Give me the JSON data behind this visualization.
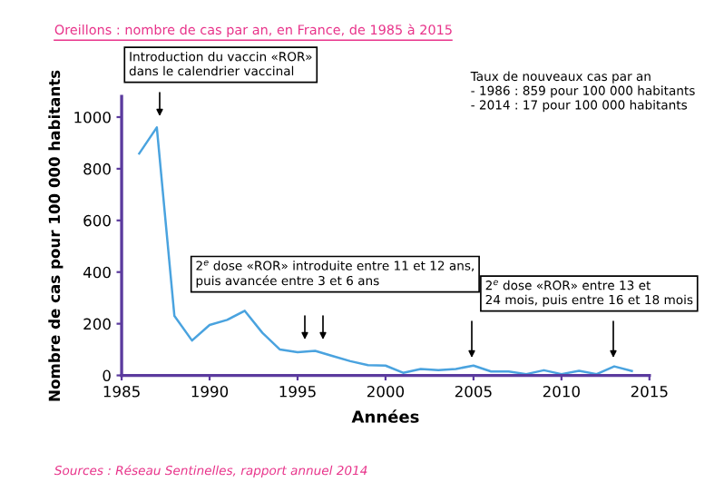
{
  "chart_data": {
    "type": "line",
    "title": "Oreillons : nombre de cas par an, en France, de 1985 à 2015",
    "xlabel": "Années",
    "ylabel": "Nombre de cas pour 100 000 habitants",
    "x": [
      1986,
      1987,
      1988,
      1989,
      1990,
      1991,
      1992,
      1993,
      1994,
      1995,
      1996,
      1997,
      1998,
      1999,
      2000,
      2001,
      2002,
      2003,
      2004,
      2005,
      2006,
      2007,
      2008,
      2009,
      2010,
      2011,
      2012,
      2013,
      2014
    ],
    "series": [
      {
        "color": "#4aa3df",
        "values": [
          859,
          960,
          230,
          135,
          195,
          215,
          250,
          165,
          100,
          90,
          95,
          75,
          55,
          40,
          38,
          10,
          25,
          20,
          25,
          38,
          15,
          15,
          5,
          20,
          5,
          18,
          5,
          35,
          17
        ]
      }
    ],
    "xlim": [
      1985,
      2015
    ],
    "xticks": [
      1985,
      1990,
      1995,
      2000,
      2005,
      2010,
      2015
    ],
    "ylim": [
      0,
      1080
    ],
    "yticks": [
      0,
      200,
      400,
      600,
      800,
      1000
    ],
    "grid": false,
    "legend": false,
    "marker": "none",
    "line_style": "solid",
    "annotations": [
      "Introduction du vaccin «ROR»\ndans le calendrier vaccinal",
      "2$^{e}$ dose «ROR» introduite entre 11 et 12 ans,\npuis avancée entre 3 et 6 ans",
      "2$^{e}$ dose «ROR» entre 13 et\n24 mois, puis entre 16 et 18 mois",
      "Taux de nouveaux cas par an\n- 1986 : 859 pour 100 000 habitants\n- 2014 : 17 pour 100 000 habitants",
      "Sources : Réseau Sentinelles, rapport annuel 2014"
    ]
  }
}
